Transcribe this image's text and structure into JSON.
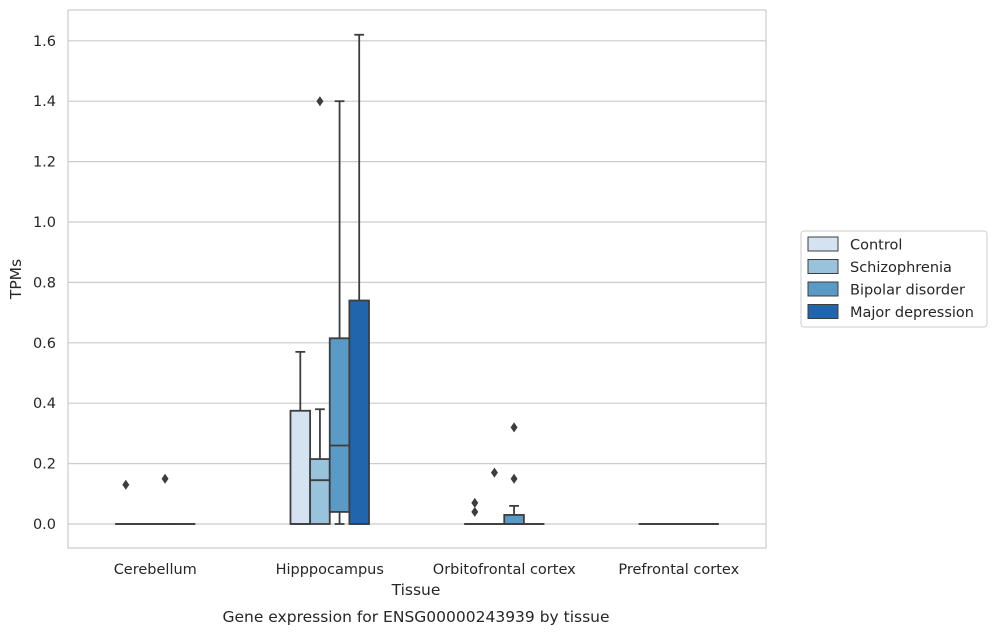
{
  "chart_data": {
    "type": "box",
    "caption": "Gene expression for ENSG00000243939 by tissue",
    "xlabel": "Tissue",
    "ylabel": "TPMs",
    "categories": [
      "Cerebellum",
      "Hipppocampus",
      "Orbitofrontal cortex",
      "Prefrontal cortex"
    ],
    "ylim": [
      -0.08,
      1.7
    ],
    "yticks": [
      0.0,
      0.2,
      0.4,
      0.6,
      0.8,
      1.0,
      1.2,
      1.4,
      1.6
    ],
    "ytick_labels": [
      "0.0",
      "0.2",
      "0.4",
      "0.6",
      "0.8",
      "1.0",
      "1.2",
      "1.4",
      "1.6"
    ],
    "grid": true,
    "legend_position": "right",
    "series": [
      {
        "name": "Control",
        "color": "#d4e2f1",
        "boxes": [
          {
            "q1": 0,
            "median": 0,
            "q3": 0,
            "whisker_low": 0,
            "whisker_high": 0,
            "outliers": [
              0.13
            ]
          },
          {
            "q1": 0,
            "median": 0,
            "q3": 0.375,
            "whisker_low": 0,
            "whisker_high": 0.57,
            "outliers": []
          },
          {
            "q1": 0,
            "median": 0,
            "q3": 0,
            "whisker_low": 0,
            "whisker_high": 0,
            "outliers": [
              0.04,
              0.07
            ]
          },
          {
            "q1": 0,
            "median": 0,
            "q3": 0,
            "whisker_low": 0,
            "whisker_high": 0,
            "outliers": []
          }
        ]
      },
      {
        "name": "Schizophrenia",
        "color": "#99c2dc",
        "boxes": [
          {
            "q1": 0,
            "median": 0,
            "q3": 0,
            "whisker_low": 0,
            "whisker_high": 0,
            "outliers": []
          },
          {
            "q1": 0,
            "median": 0.145,
            "q3": 0.215,
            "whisker_low": 0,
            "whisker_high": 0.38,
            "outliers": [
              1.4
            ]
          },
          {
            "q1": 0,
            "median": 0,
            "q3": 0,
            "whisker_low": 0,
            "whisker_high": 0,
            "outliers": [
              0.17
            ]
          },
          {
            "q1": 0,
            "median": 0,
            "q3": 0,
            "whisker_low": 0,
            "whisker_high": 0,
            "outliers": []
          }
        ]
      },
      {
        "name": "Bipolar disorder",
        "color": "#5a9ac6",
        "boxes": [
          {
            "q1": 0,
            "median": 0,
            "q3": 0,
            "whisker_low": 0,
            "whisker_high": 0,
            "outliers": [
              0.15
            ]
          },
          {
            "q1": 0.04,
            "median": 0.26,
            "q3": 0.615,
            "whisker_low": 0,
            "whisker_high": 1.4,
            "outliers": []
          },
          {
            "q1": 0,
            "median": 0,
            "q3": 0.03,
            "whisker_low": 0,
            "whisker_high": 0.06,
            "outliers": [
              0.15,
              0.32
            ]
          },
          {
            "q1": 0,
            "median": 0,
            "q3": 0,
            "whisker_low": 0,
            "whisker_high": 0,
            "outliers": []
          }
        ]
      },
      {
        "name": "Major depression",
        "color": "#2166ac",
        "boxes": [
          {
            "q1": 0,
            "median": 0,
            "q3": 0,
            "whisker_low": 0,
            "whisker_high": 0,
            "outliers": []
          },
          {
            "q1": 0,
            "median": 0,
            "q3": 0.74,
            "whisker_low": 0,
            "whisker_high": 1.62,
            "outliers": []
          },
          {
            "q1": 0,
            "median": 0,
            "q3": 0,
            "whisker_low": 0,
            "whisker_high": 0,
            "outliers": []
          },
          {
            "q1": 0,
            "median": 0,
            "q3": 0,
            "whisker_low": 0,
            "whisker_high": 0,
            "outliers": []
          }
        ]
      }
    ]
  }
}
